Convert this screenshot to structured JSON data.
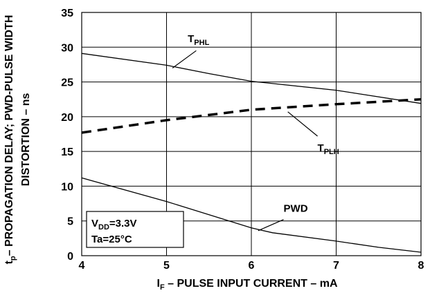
{
  "chart_data": {
    "type": "line",
    "xlim": [
      4,
      8
    ],
    "ylim": [
      0,
      35
    ],
    "xticks": [
      "4",
      "5",
      "6",
      "7",
      "8"
    ],
    "yticks": [
      "0",
      "5",
      "10",
      "15",
      "20",
      "25",
      "30",
      "35"
    ],
    "grid": "vertical-and-horizontal",
    "xlabel": {
      "main": "I",
      "sub": "F",
      "rest": " – PULSE INPUT CURRENT – mA"
    },
    "ylabel": {
      "line1_main": "t",
      "line1_sub": "p",
      "line1_rest": "– PROPAGATION DELAY; PWD-PULSE WIDTH",
      "line2": "DISTORTION – ns"
    },
    "series": [
      {
        "name": "PHL",
        "label_main": "T",
        "label_sub": "PHL",
        "style": "solid",
        "color": "#000000",
        "x": [
          4,
          5,
          5.5,
          6,
          7,
          8
        ],
        "y": [
          29.1,
          27.4,
          26.2,
          25.1,
          23.8,
          21.9
        ]
      },
      {
        "name": "PLH",
        "label_main": "T",
        "label_sub": "PLH",
        "style": "dashed",
        "color": "#000000",
        "x": [
          4,
          5,
          6,
          7,
          8
        ],
        "y": [
          17.7,
          19.5,
          21.0,
          21.8,
          22.5
        ]
      },
      {
        "name": "PWD",
        "label_main": "PWD",
        "label_sub": "",
        "style": "solid",
        "color": "#000000",
        "x": [
          4,
          5,
          6,
          6.25,
          7,
          7.5,
          8
        ],
        "y": [
          11.2,
          7.8,
          4.0,
          3.3,
          2.1,
          1.2,
          0.5
        ]
      }
    ],
    "annotation": {
      "line1_main": "V",
      "line1_sub": "DD",
      "line1_rest": "=3.3V",
      "line2": "Ta=25°C"
    }
  }
}
